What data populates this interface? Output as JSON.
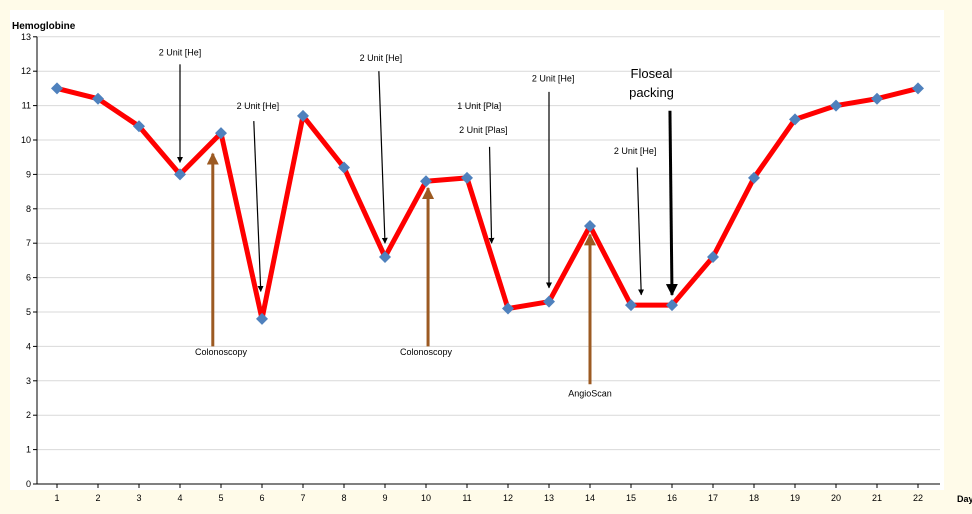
{
  "chart_data": {
    "type": "line",
    "ylabel": "Hemoglobine",
    "xlabel": "Day",
    "ylim": [
      0,
      13
    ],
    "xlim": [
      1,
      22
    ],
    "yticks": [
      0,
      1,
      2,
      3,
      4,
      5,
      6,
      7,
      8,
      9,
      10,
      11,
      12,
      13
    ],
    "grid": true,
    "colors": {
      "background": "#fffbe9",
      "plot_background": "#ffffff",
      "line": "#ff0000",
      "marker": "#4f81bd",
      "transfusion_arrow": "#000000",
      "procedure_arrow": "#9c5a22"
    },
    "series": [
      {
        "x": [
          1,
          2,
          3,
          4,
          5,
          6,
          7,
          8,
          9,
          10,
          11,
          12,
          13,
          14,
          15,
          16,
          17,
          18,
          19,
          20,
          21,
          22
        ],
        "values": [
          11.5,
          11.2,
          10.4,
          9.0,
          10.2,
          4.8,
          10.7,
          9.2,
          6.6,
          8.8,
          8.9,
          5.1,
          5.3,
          7.5,
          5.2,
          5.2,
          6.6,
          8.9,
          10.6,
          11.0,
          11.2,
          11.5
        ]
      }
    ],
    "annotations": [
      {
        "text": "2 Unit [He]",
        "kind": "transfusion",
        "label_x": 4.0,
        "label_y": 12.45,
        "arrow_x0": 4.0,
        "arrow_y0": 12.2,
        "arrow_x1": 4.0,
        "arrow_y1": 9.35
      },
      {
        "text": "2 Unit [He]",
        "kind": "transfusion",
        "label_x": 5.9,
        "label_y": 10.9,
        "arrow_x0": 5.8,
        "arrow_y0": 10.55,
        "arrow_x1": 5.97,
        "arrow_y1": 5.6
      },
      {
        "text": "2 Unit [He]",
        "kind": "transfusion",
        "label_x": 8.9,
        "label_y": 12.3,
        "arrow_x0": 8.85,
        "arrow_y0": 12.0,
        "arrow_x1": 9.0,
        "arrow_y1": 7.0
      },
      {
        "text": "1 Unit [Pla]",
        "kind": "transfusion",
        "label_x": 11.3,
        "label_y": 10.9,
        "arrow_x0": null,
        "arrow_y0": null,
        "arrow_x1": null,
        "arrow_y1": null
      },
      {
        "text": "2 Unit [Plas]",
        "kind": "transfusion",
        "label_x": 11.4,
        "label_y": 10.2,
        "arrow_x0": 11.55,
        "arrow_y0": 9.8,
        "arrow_x1": 11.6,
        "arrow_y1": 7.0
      },
      {
        "text": "2 Unit [He]",
        "kind": "transfusion",
        "label_x": 13.1,
        "label_y": 11.7,
        "arrow_x0": 13.0,
        "arrow_y0": 11.4,
        "arrow_x1": 13.0,
        "arrow_y1": 5.7
      },
      {
        "text": "2 Unit [He]",
        "kind": "transfusion",
        "label_x": 15.1,
        "label_y": 9.6,
        "arrow_x0": 15.15,
        "arrow_y0": 9.2,
        "arrow_x1": 15.25,
        "arrow_y1": 5.5
      },
      {
        "text": "Floseal",
        "kind": "transfusion-bold",
        "label_x": 15.5,
        "label_y": 11.8,
        "arrow_x0": null,
        "arrow_y0": null,
        "arrow_x1": null,
        "arrow_y1": null
      },
      {
        "text": "packing",
        "kind": "transfusion-bold",
        "label_x": 15.5,
        "label_y": 11.25,
        "arrow_x0": 15.95,
        "arrow_y0": 10.85,
        "arrow_x1": 16.0,
        "arrow_y1": 5.5
      },
      {
        "text": "Colonoscopy",
        "kind": "procedure",
        "label_x": 5.0,
        "label_y": 3.75,
        "arrow_x0": 4.8,
        "arrow_y0": 4.0,
        "arrow_x1": 4.8,
        "arrow_y1": 9.6
      },
      {
        "text": "Colonoscopy",
        "kind": "procedure",
        "label_x": 10.0,
        "label_y": 3.75,
        "arrow_x0": 10.05,
        "arrow_y0": 4.0,
        "arrow_x1": 10.05,
        "arrow_y1": 8.6
      },
      {
        "text": "AngioScan",
        "kind": "procedure",
        "label_x": 14.0,
        "label_y": 2.55,
        "arrow_x0": 14.0,
        "arrow_y0": 2.9,
        "arrow_x1": 14.0,
        "arrow_y1": 7.25
      }
    ]
  }
}
